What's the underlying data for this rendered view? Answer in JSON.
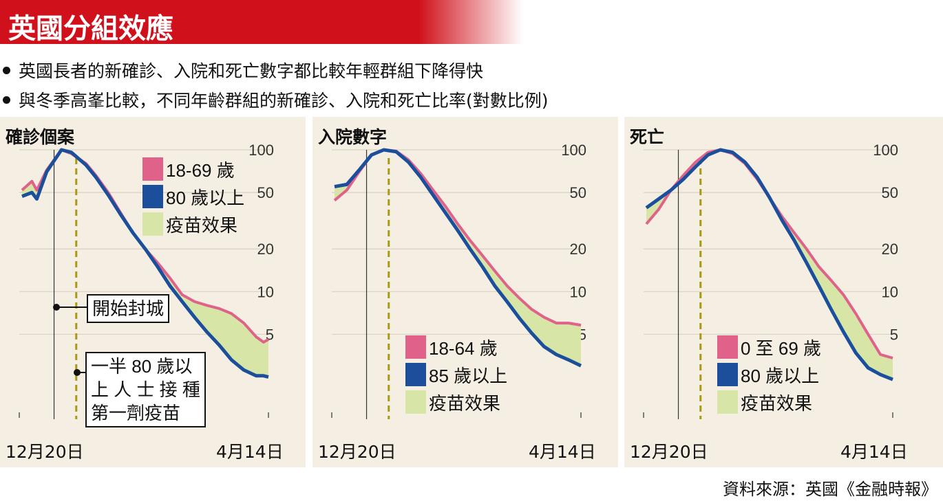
{
  "header": {
    "title": "英國分組效應",
    "bullets": [
      "英國長者的新確診、入院和死亡數字都比較年輕群組下降得快",
      "與冬季高峯比較，不同年齡群組的新確診、入院和死亡比率(對數比例)"
    ]
  },
  "colors": {
    "young": "#e0628a",
    "old": "#1b4f9c",
    "effect": "#d7e6a6",
    "dash": "#a89a12",
    "panel_bg": "#f5efe3"
  },
  "callouts": {
    "lockdown": "開始封城",
    "vaccine": [
      "一半 80 歲以",
      "上 人 士 接 種",
      "第一劑疫苗"
    ]
  },
  "source": "資料來源：英國《金融時報》",
  "chart_data": [
    {
      "type": "line",
      "title": "確診個案",
      "yscale": "log",
      "ylim": [
        2.2,
        100
      ],
      "yticks": [
        "100",
        "50",
        "20",
        "10",
        "5"
      ],
      "x_start_label": "12月20日",
      "x_end_label": "4月14日",
      "lockdown_x": 0.13,
      "vaccine_x": 0.22,
      "legend": [
        "18-69 歲",
        "80 歲以上",
        "疫苗效果"
      ],
      "series": [
        {
          "name": "18-69 歲",
          "x": [
            0,
            0.04,
            0.06,
            0.1,
            0.16,
            0.2,
            0.26,
            0.3,
            0.35,
            0.4,
            0.45,
            0.5,
            0.55,
            0.6,
            0.65,
            0.7,
            0.75,
            0.8,
            0.85,
            0.9,
            0.95,
            0.98,
            1.0
          ],
          "values": [
            52,
            60,
            52,
            72,
            100,
            94,
            80,
            66,
            50,
            36,
            26,
            20,
            16,
            12.5,
            9.5,
            8.5,
            8.0,
            7.6,
            7.0,
            6.0,
            4.8,
            4.4,
            4.6
          ]
        },
        {
          "name": "80 歲以上",
          "x": [
            0,
            0.04,
            0.06,
            0.1,
            0.16,
            0.2,
            0.26,
            0.3,
            0.35,
            0.4,
            0.45,
            0.5,
            0.55,
            0.6,
            0.65,
            0.7,
            0.75,
            0.8,
            0.85,
            0.9,
            0.95,
            0.98,
            1.0
          ],
          "values": [
            47,
            50,
            45,
            70,
            100,
            96,
            78,
            64,
            48,
            35,
            26,
            20,
            15,
            11,
            8.5,
            6.6,
            5.2,
            4.2,
            3.3,
            2.8,
            2.55,
            2.55,
            2.5
          ]
        }
      ]
    },
    {
      "type": "line",
      "title": "入院數字",
      "yscale": "log",
      "ylim": [
        2.2,
        100
      ],
      "yticks": [
        "100",
        "50",
        "20",
        "10",
        "5"
      ],
      "x_start_label": "12月20日",
      "x_end_label": "4月14日",
      "lockdown_x": 0.13,
      "vaccine_x": 0.22,
      "legend": [
        "18-64 歲",
        "85 歲以上",
        "疫苗效果"
      ],
      "series": [
        {
          "name": "18-64 歲",
          "x": [
            0,
            0.05,
            0.1,
            0.15,
            0.2,
            0.25,
            0.3,
            0.35,
            0.4,
            0.45,
            0.5,
            0.55,
            0.6,
            0.65,
            0.7,
            0.75,
            0.8,
            0.85,
            0.9,
            0.95,
            1.0
          ],
          "values": [
            44,
            52,
            70,
            92,
            100,
            98,
            85,
            68,
            52,
            40,
            30,
            23,
            18,
            14,
            11,
            9.0,
            7.5,
            6.6,
            6.0,
            6.0,
            5.8
          ]
        },
        {
          "name": "85 歲以上",
          "x": [
            0,
            0.05,
            0.1,
            0.15,
            0.2,
            0.25,
            0.3,
            0.35,
            0.4,
            0.45,
            0.5,
            0.55,
            0.6,
            0.65,
            0.7,
            0.75,
            0.8,
            0.85,
            0.9,
            0.95,
            1.0
          ],
          "values": [
            55,
            57,
            72,
            92,
            100,
            97,
            82,
            64,
            48,
            36,
            27,
            20,
            15,
            11,
            8.5,
            6.5,
            5.1,
            4.1,
            3.6,
            3.3,
            3.0
          ]
        }
      ]
    },
    {
      "type": "line",
      "title": "死亡",
      "yscale": "log",
      "ylim": [
        2.2,
        100
      ],
      "yticks": [
        "100",
        "50",
        "20",
        "10",
        "5"
      ],
      "x_start_label": "12月20日",
      "x_end_label": "4月14日",
      "lockdown_x": 0.13,
      "vaccine_x": 0.22,
      "legend": [
        "0 至 69 歲",
        "80 歲以上",
        "疫苗效果"
      ],
      "series": [
        {
          "name": "0 至 69 歲",
          "x": [
            0,
            0.05,
            0.1,
            0.15,
            0.2,
            0.25,
            0.3,
            0.35,
            0.4,
            0.45,
            0.5,
            0.55,
            0.6,
            0.65,
            0.7,
            0.75,
            0.8,
            0.85,
            0.9,
            0.95,
            1.0
          ],
          "values": [
            30,
            38,
            52,
            66,
            82,
            96,
            100,
            94,
            80,
            62,
            46,
            34,
            26,
            20,
            15,
            12,
            9.5,
            7.0,
            5.0,
            3.6,
            3.4
          ]
        },
        {
          "name": "80 歲以上",
          "x": [
            0,
            0.05,
            0.1,
            0.15,
            0.2,
            0.25,
            0.3,
            0.35,
            0.4,
            0.45,
            0.5,
            0.55,
            0.6,
            0.65,
            0.7,
            0.75,
            0.8,
            0.85,
            0.9,
            0.95,
            1.0
          ],
          "values": [
            39,
            45,
            52,
            62,
            76,
            92,
            100,
            96,
            82,
            64,
            46,
            32,
            23,
            16,
            11,
            7.5,
            5.2,
            3.7,
            2.9,
            2.6,
            2.4
          ]
        }
      ]
    }
  ]
}
